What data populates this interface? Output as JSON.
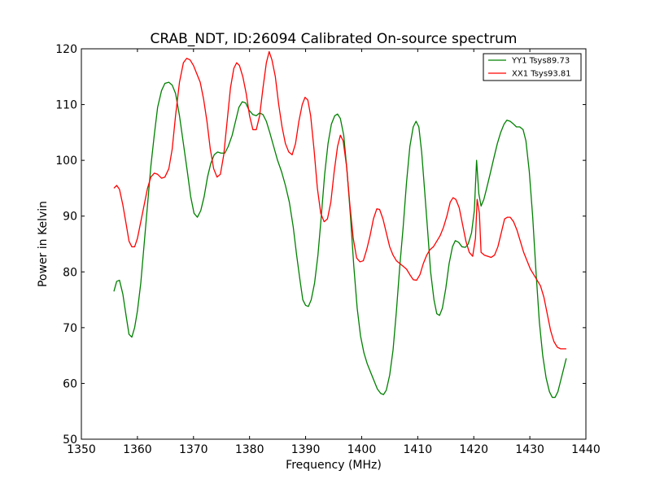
{
  "chart_data": {
    "type": "line",
    "title": "CRAB_NDT, ID:26094 Calibrated On-source spectrum",
    "xlabel": "Frequency (MHz)",
    "ylabel": "Power in Kelvin",
    "xlim": [
      1350,
      1440
    ],
    "ylim": [
      50,
      120
    ],
    "xticks": [
      1350,
      1360,
      1370,
      1380,
      1390,
      1400,
      1410,
      1420,
      1430,
      1440
    ],
    "yticks": [
      50,
      60,
      70,
      80,
      90,
      100,
      110,
      120
    ],
    "grid": false,
    "legend_position": "top-right",
    "series": [
      {
        "name": "YY1 Tsys89.73",
        "color": "#008000",
        "points": [
          [
            1355.8,
            76.5
          ],
          [
            1356.3,
            78.3
          ],
          [
            1356.8,
            78.5
          ],
          [
            1357.4,
            76.0
          ],
          [
            1358.0,
            72.0
          ],
          [
            1358.5,
            68.8
          ],
          [
            1359.0,
            68.3
          ],
          [
            1359.5,
            70.0
          ],
          [
            1360.0,
            73.0
          ],
          [
            1360.6,
            78.0
          ],
          [
            1361.2,
            85.0
          ],
          [
            1361.8,
            92.0
          ],
          [
            1362.4,
            99.0
          ],
          [
            1363.0,
            104.5
          ],
          [
            1363.6,
            109.5
          ],
          [
            1364.3,
            112.5
          ],
          [
            1364.9,
            113.8
          ],
          [
            1365.6,
            114.0
          ],
          [
            1366.2,
            113.5
          ],
          [
            1366.8,
            112.0
          ],
          [
            1367.5,
            108.0
          ],
          [
            1368.2,
            103.0
          ],
          [
            1368.9,
            98.0
          ],
          [
            1369.5,
            93.5
          ],
          [
            1370.1,
            90.5
          ],
          [
            1370.7,
            89.8
          ],
          [
            1371.3,
            91.0
          ],
          [
            1371.9,
            93.5
          ],
          [
            1372.5,
            97.0
          ],
          [
            1373.1,
            99.5
          ],
          [
            1373.7,
            101.0
          ],
          [
            1374.3,
            101.5
          ],
          [
            1374.9,
            101.3
          ],
          [
            1375.6,
            101.3
          ],
          [
            1376.2,
            102.5
          ],
          [
            1376.9,
            104.5
          ],
          [
            1377.5,
            107.0
          ],
          [
            1378.1,
            109.5
          ],
          [
            1378.7,
            110.5
          ],
          [
            1379.3,
            110.3
          ],
          [
            1379.9,
            109.0
          ],
          [
            1380.6,
            108.2
          ],
          [
            1381.2,
            108.0
          ],
          [
            1381.8,
            108.5
          ],
          [
            1382.4,
            108.2
          ],
          [
            1383.0,
            107.0
          ],
          [
            1383.6,
            105.0
          ],
          [
            1384.3,
            102.5
          ],
          [
            1385.0,
            100.0
          ],
          [
            1385.7,
            98.0
          ],
          [
            1386.4,
            95.5
          ],
          [
            1387.1,
            92.5
          ],
          [
            1387.8,
            88.0
          ],
          [
            1388.4,
            83.0
          ],
          [
            1389.0,
            78.5
          ],
          [
            1389.5,
            75.0
          ],
          [
            1390.0,
            74.0
          ],
          [
            1390.5,
            73.8
          ],
          [
            1391.0,
            75.0
          ],
          [
            1391.6,
            78.0
          ],
          [
            1392.2,
            83.0
          ],
          [
            1392.8,
            90.0
          ],
          [
            1393.4,
            97.5
          ],
          [
            1394.0,
            103.0
          ],
          [
            1394.6,
            106.5
          ],
          [
            1395.2,
            108.0
          ],
          [
            1395.7,
            108.3
          ],
          [
            1396.2,
            107.5
          ],
          [
            1396.8,
            104.5
          ],
          [
            1397.4,
            98.0
          ],
          [
            1398.0,
            90.0
          ],
          [
            1398.6,
            81.0
          ],
          [
            1399.2,
            73.5
          ],
          [
            1399.8,
            68.5
          ],
          [
            1400.4,
            65.5
          ],
          [
            1401.0,
            63.5
          ],
          [
            1401.6,
            62.0
          ],
          [
            1402.2,
            60.5
          ],
          [
            1402.8,
            59.0
          ],
          [
            1403.4,
            58.2
          ],
          [
            1403.9,
            58.0
          ],
          [
            1404.4,
            58.8
          ],
          [
            1405.0,
            61.5
          ],
          [
            1405.6,
            66.0
          ],
          [
            1406.2,
            73.0
          ],
          [
            1406.8,
            81.0
          ],
          [
            1407.4,
            88.0
          ],
          [
            1408.0,
            96.0
          ],
          [
            1408.6,
            102.5
          ],
          [
            1409.2,
            106.0
          ],
          [
            1409.7,
            107.0
          ],
          [
            1410.2,
            106.0
          ],
          [
            1410.7,
            101.5
          ],
          [
            1411.2,
            95.0
          ],
          [
            1411.8,
            87.0
          ],
          [
            1412.3,
            80.0
          ],
          [
            1412.9,
            75.0
          ],
          [
            1413.4,
            72.5
          ],
          [
            1413.9,
            72.2
          ],
          [
            1414.4,
            73.5
          ],
          [
            1415.0,
            77.0
          ],
          [
            1415.6,
            81.5
          ],
          [
            1416.2,
            84.5
          ],
          [
            1416.7,
            85.6
          ],
          [
            1417.3,
            85.3
          ],
          [
            1417.9,
            84.5
          ],
          [
            1418.5,
            84.4
          ],
          [
            1419.0,
            85.0
          ],
          [
            1419.6,
            87.0
          ],
          [
            1420.1,
            91.0
          ],
          [
            1420.5,
            100.0
          ],
          [
            1420.9,
            94.0
          ],
          [
            1421.3,
            91.8
          ],
          [
            1421.8,
            93.0
          ],
          [
            1422.3,
            95.0
          ],
          [
            1422.9,
            97.5
          ],
          [
            1423.6,
            100.5
          ],
          [
            1424.2,
            103.0
          ],
          [
            1424.8,
            105.0
          ],
          [
            1425.4,
            106.5
          ],
          [
            1425.9,
            107.2
          ],
          [
            1426.5,
            107.0
          ],
          [
            1427.1,
            106.5
          ],
          [
            1427.6,
            106.0
          ],
          [
            1428.2,
            106.0
          ],
          [
            1428.8,
            105.5
          ],
          [
            1429.3,
            103.5
          ],
          [
            1429.9,
            98.0
          ],
          [
            1430.5,
            90.0
          ],
          [
            1431.1,
            80.0
          ],
          [
            1431.7,
            71.0
          ],
          [
            1432.3,
            65.0
          ],
          [
            1432.9,
            61.0
          ],
          [
            1433.5,
            58.5
          ],
          [
            1434.0,
            57.5
          ],
          [
            1434.5,
            57.5
          ],
          [
            1435.0,
            58.5
          ],
          [
            1435.5,
            60.5
          ],
          [
            1436.0,
            62.5
          ],
          [
            1436.5,
            64.5
          ]
        ]
      },
      {
        "name": "XX1 Tsys93.81",
        "color": "#ff0000",
        "points": [
          [
            1355.8,
            95.0
          ],
          [
            1356.3,
            95.5
          ],
          [
            1356.8,
            94.8
          ],
          [
            1357.4,
            92.0
          ],
          [
            1358.0,
            88.5
          ],
          [
            1358.5,
            85.5
          ],
          [
            1359.0,
            84.5
          ],
          [
            1359.5,
            84.5
          ],
          [
            1360.0,
            86.0
          ],
          [
            1360.6,
            89.0
          ],
          [
            1361.2,
            92.0
          ],
          [
            1361.8,
            95.0
          ],
          [
            1362.4,
            97.0
          ],
          [
            1363.0,
            97.7
          ],
          [
            1363.6,
            97.5
          ],
          [
            1364.3,
            96.8
          ],
          [
            1364.9,
            97.0
          ],
          [
            1365.6,
            98.5
          ],
          [
            1366.2,
            102.0
          ],
          [
            1366.8,
            108.0
          ],
          [
            1367.5,
            114.0
          ],
          [
            1368.2,
            117.5
          ],
          [
            1368.8,
            118.3
          ],
          [
            1369.4,
            118.0
          ],
          [
            1370.0,
            117.0
          ],
          [
            1370.6,
            115.5
          ],
          [
            1371.2,
            114.0
          ],
          [
            1371.8,
            111.0
          ],
          [
            1372.4,
            107.0
          ],
          [
            1373.0,
            102.0
          ],
          [
            1373.6,
            98.5
          ],
          [
            1374.2,
            97.0
          ],
          [
            1374.8,
            97.5
          ],
          [
            1375.4,
            101.0
          ],
          [
            1376.0,
            107.0
          ],
          [
            1376.6,
            113.0
          ],
          [
            1377.2,
            116.5
          ],
          [
            1377.7,
            117.5
          ],
          [
            1378.2,
            117.0
          ],
          [
            1378.8,
            115.0
          ],
          [
            1379.4,
            112.0
          ],
          [
            1380.0,
            108.0
          ],
          [
            1380.6,
            105.5
          ],
          [
            1381.2,
            105.5
          ],
          [
            1381.8,
            108.0
          ],
          [
            1382.4,
            113.0
          ],
          [
            1383.0,
            117.5
          ],
          [
            1383.5,
            119.5
          ],
          [
            1384.0,
            118.0
          ],
          [
            1384.6,
            115.0
          ],
          [
            1385.2,
            110.0
          ],
          [
            1385.8,
            106.0
          ],
          [
            1386.4,
            103.0
          ],
          [
            1387.0,
            101.5
          ],
          [
            1387.6,
            101.0
          ],
          [
            1388.2,
            103.0
          ],
          [
            1388.8,
            107.0
          ],
          [
            1389.4,
            110.0
          ],
          [
            1389.9,
            111.3
          ],
          [
            1390.4,
            110.8
          ],
          [
            1390.9,
            108.0
          ],
          [
            1391.5,
            102.0
          ],
          [
            1392.1,
            95.0
          ],
          [
            1392.7,
            90.5
          ],
          [
            1393.3,
            89.0
          ],
          [
            1393.9,
            89.5
          ],
          [
            1394.5,
            92.5
          ],
          [
            1395.1,
            98.0
          ],
          [
            1395.7,
            102.5
          ],
          [
            1396.2,
            104.5
          ],
          [
            1396.7,
            103.5
          ],
          [
            1397.3,
            99.0
          ],
          [
            1397.9,
            92.0
          ],
          [
            1398.5,
            86.0
          ],
          [
            1399.1,
            82.5
          ],
          [
            1399.7,
            81.8
          ],
          [
            1400.3,
            82.0
          ],
          [
            1400.9,
            84.0
          ],
          [
            1401.5,
            86.5
          ],
          [
            1402.1,
            89.5
          ],
          [
            1402.7,
            91.3
          ],
          [
            1403.2,
            91.2
          ],
          [
            1403.8,
            89.5
          ],
          [
            1404.4,
            87.0
          ],
          [
            1405.0,
            84.5
          ],
          [
            1405.6,
            83.0
          ],
          [
            1406.2,
            82.0
          ],
          [
            1406.8,
            81.5
          ],
          [
            1407.4,
            81.0
          ],
          [
            1408.0,
            80.5
          ],
          [
            1408.6,
            79.5
          ],
          [
            1409.2,
            78.6
          ],
          [
            1409.8,
            78.5
          ],
          [
            1410.4,
            79.5
          ],
          [
            1411.0,
            81.5
          ],
          [
            1411.6,
            83.0
          ],
          [
            1412.2,
            84.0
          ],
          [
            1412.8,
            84.5
          ],
          [
            1413.4,
            85.5
          ],
          [
            1414.0,
            86.5
          ],
          [
            1414.6,
            88.0
          ],
          [
            1415.2,
            90.0
          ],
          [
            1415.8,
            92.5
          ],
          [
            1416.3,
            93.3
          ],
          [
            1416.8,
            93.0
          ],
          [
            1417.4,
            91.5
          ],
          [
            1418.0,
            88.5
          ],
          [
            1418.6,
            85.5
          ],
          [
            1419.2,
            83.5
          ],
          [
            1419.8,
            82.8
          ],
          [
            1420.3,
            86.0
          ],
          [
            1420.6,
            93.0
          ],
          [
            1421.0,
            90.5
          ],
          [
            1421.3,
            83.5
          ],
          [
            1421.9,
            83.0
          ],
          [
            1422.5,
            82.8
          ],
          [
            1423.1,
            82.6
          ],
          [
            1423.7,
            83.0
          ],
          [
            1424.3,
            84.5
          ],
          [
            1424.9,
            87.0
          ],
          [
            1425.5,
            89.5
          ],
          [
            1426.0,
            89.8
          ],
          [
            1426.5,
            89.8
          ],
          [
            1427.1,
            89.0
          ],
          [
            1427.7,
            87.5
          ],
          [
            1428.3,
            85.5
          ],
          [
            1428.9,
            83.5
          ],
          [
            1429.5,
            82.0
          ],
          [
            1430.1,
            80.5
          ],
          [
            1430.7,
            79.5
          ],
          [
            1431.3,
            78.5
          ],
          [
            1431.9,
            77.5
          ],
          [
            1432.5,
            75.5
          ],
          [
            1433.1,
            72.5
          ],
          [
            1433.7,
            69.5
          ],
          [
            1434.3,
            67.5
          ],
          [
            1434.9,
            66.5
          ],
          [
            1435.5,
            66.2
          ],
          [
            1436.0,
            66.2
          ],
          [
            1436.5,
            66.2
          ]
        ]
      }
    ]
  }
}
